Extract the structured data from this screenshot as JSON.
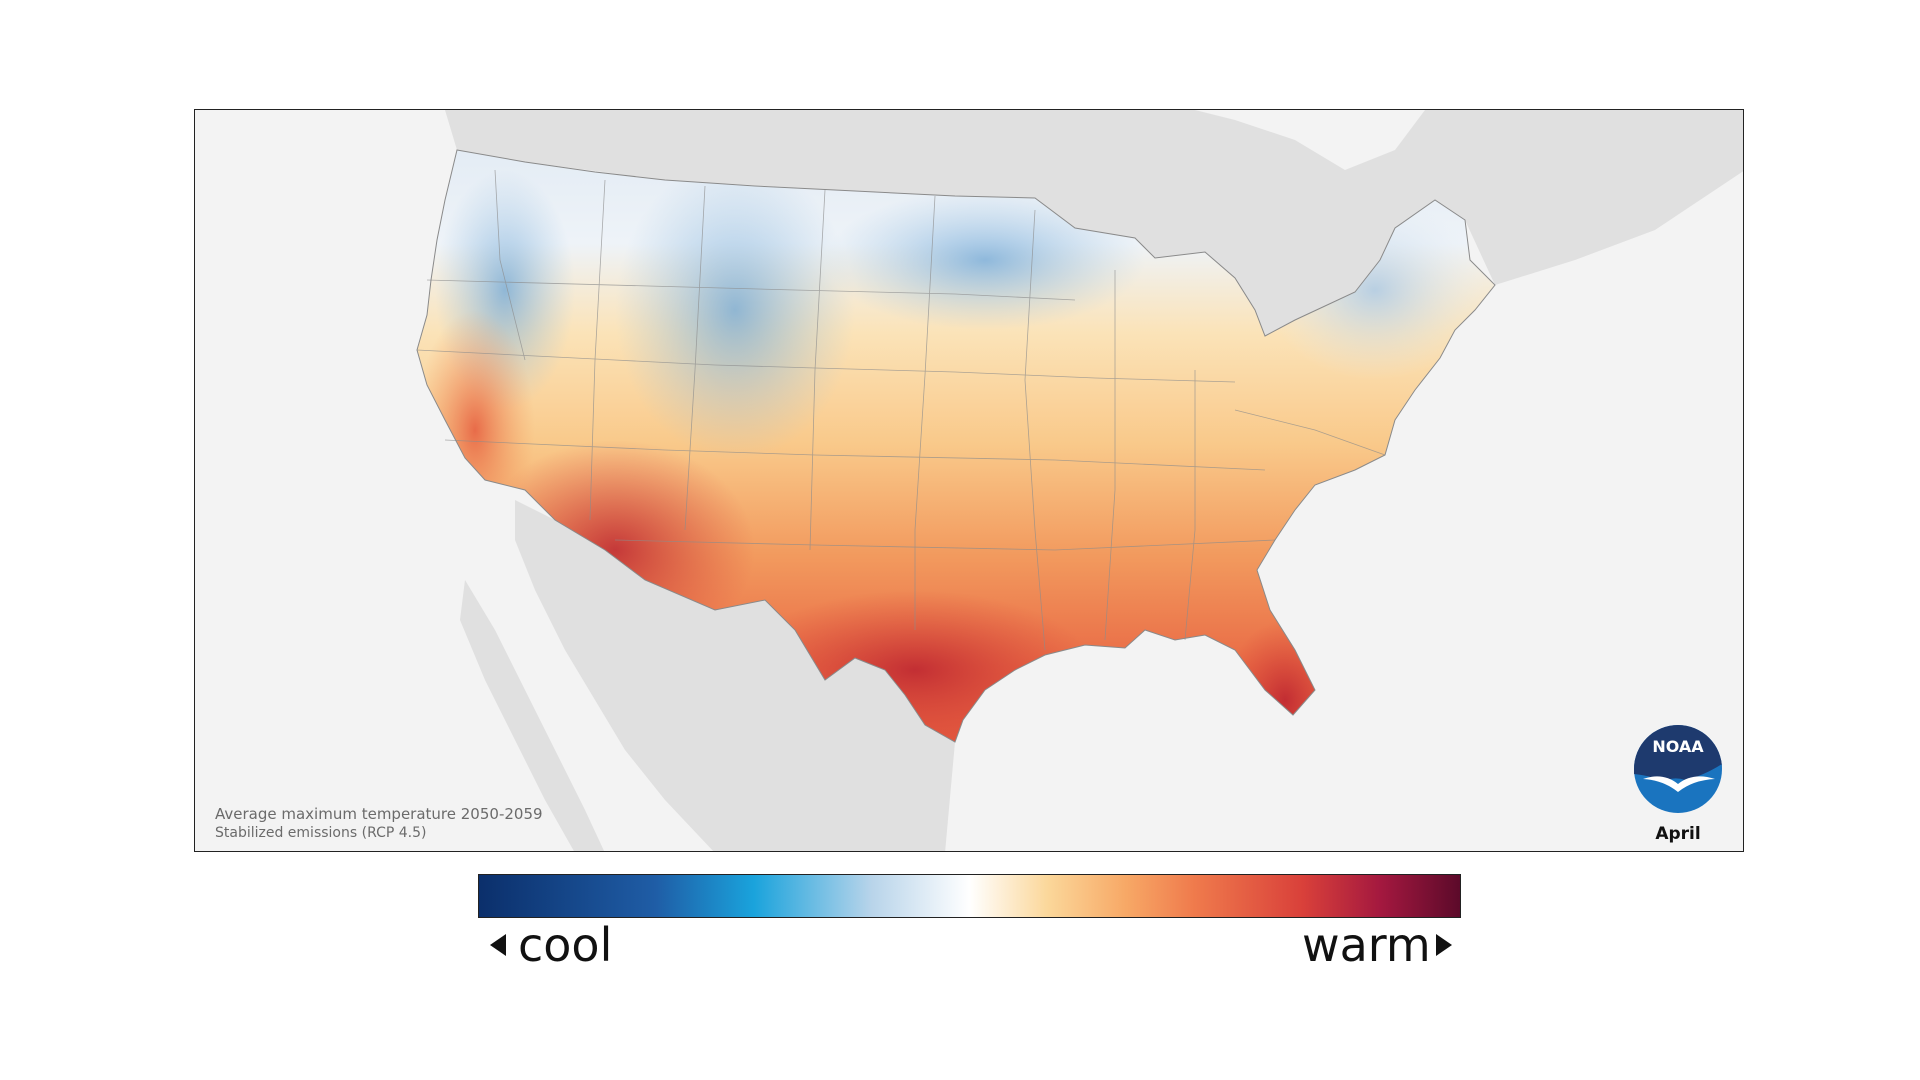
{
  "map": {
    "caption_title": "Average maximum temperature 2050-2059",
    "caption_subtitle": "Stabilized emissions (RCP 4.5)",
    "month": "April",
    "logo_text": "NOAA",
    "background_color": "#f3f3f3",
    "neighbor_land_color": "#e0e0e0"
  },
  "legend": {
    "cool_label": "cool",
    "warm_label": "warm",
    "colors": [
      "#0b2f6b",
      "#1f5da6",
      "#1aa3dc",
      "#b8d4ea",
      "#ffffff",
      "#fbd79a",
      "#f7a866",
      "#ef7a4c",
      "#d9403a",
      "#a3183f",
      "#5c0a2a"
    ]
  }
}
